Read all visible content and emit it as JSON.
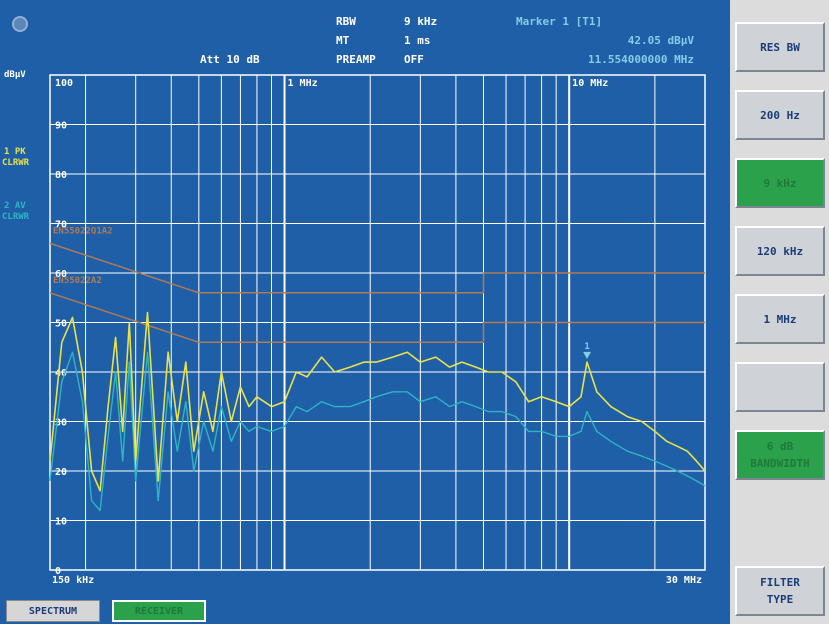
{
  "header": {
    "att": "Att 10 dB",
    "rbw_label": "RBW",
    "rbw_value": "9 kHz",
    "mt_label": "MT",
    "mt_value": "1 ms",
    "preamp_label": "PREAMP",
    "preamp_value": "OFF",
    "marker_title": "Marker 1 [T1]",
    "marker_level": "42.05 dBµV",
    "marker_freq": "11.554000000 MHz"
  },
  "left_labels": {
    "unit": "dBµV",
    "trace1_line1": "1 PK",
    "trace1_line2": "CLRWR",
    "trace2_line1": "2 AV",
    "trace2_line2": "CLRWR"
  },
  "colors": {
    "screen_bg": "#1f5fa8",
    "grid": "#ffffff",
    "trace_peak": "#e8e24a",
    "trace_avg": "#2fb4c2",
    "limit_lines": "#b07a52",
    "softkey_active": "#2aa14a"
  },
  "softkeys": [
    {
      "label": "RES BW",
      "active": false
    },
    {
      "label": "200 Hz",
      "active": false
    },
    {
      "label": "9 kHz",
      "active": true
    },
    {
      "label": "120 kHz",
      "active": false
    },
    {
      "label": "1 MHz",
      "active": false
    },
    {
      "label": "",
      "active": false
    },
    {
      "label": "6 dB\nBANDWIDTH",
      "active": true
    },
    {
      "label": "FILTER\nTYPE",
      "active": false
    }
  ],
  "tabs": {
    "spectrum": "SPECTRUM",
    "receiver": "RECEIVER"
  },
  "chart_data": {
    "type": "line",
    "xscale": "log",
    "xlim": [
      150000,
      30000000
    ],
    "ylim": [
      0,
      100
    ],
    "y_ticks": [
      0,
      10,
      20,
      30,
      40,
      50,
      60,
      70,
      80,
      90,
      100
    ],
    "x_tick_labels": [
      "150 kHz",
      "1 MHz",
      "10 MHz",
      "30 MHz"
    ],
    "grid": true,
    "limit_lines": [
      {
        "name": "EN55022Q1A2",
        "points": [
          [
            150000,
            66
          ],
          [
            500000,
            56
          ],
          [
            5000000,
            56
          ],
          [
            5000000,
            60
          ],
          [
            30000000,
            60
          ]
        ]
      },
      {
        "name": "EN55022A2",
        "points": [
          [
            150000,
            56
          ],
          [
            500000,
            46
          ],
          [
            5000000,
            46
          ],
          [
            5000000,
            50
          ],
          [
            30000000,
            50
          ]
        ]
      }
    ],
    "marker": {
      "label": "1",
      "x": 11554000,
      "y": 42.05
    },
    "series": [
      {
        "name": "1 PK",
        "x": [
          150000,
          165000,
          180000,
          195000,
          210000,
          225000,
          240000,
          255000,
          270000,
          285000,
          300000,
          330000,
          360000,
          390000,
          420000,
          450000,
          480000,
          520000,
          560000,
          600000,
          650000,
          700000,
          750000,
          800000,
          900000,
          1000000,
          1100000,
          1200000,
          1350000,
          1500000,
          1700000,
          1900000,
          2100000,
          2400000,
          2700000,
          3000000,
          3400000,
          3800000,
          4200000,
          4700000,
          5200000,
          5800000,
          6500000,
          7200000,
          8000000,
          9000000,
          10000000,
          11000000,
          11554000,
          12500000,
          14000000,
          16000000,
          18000000,
          20000000,
          22000000,
          24000000,
          26000000,
          28000000,
          30000000
        ],
        "values": [
          22,
          46,
          51,
          40,
          20,
          16,
          33,
          47,
          28,
          50,
          22,
          52,
          18,
          44,
          30,
          42,
          24,
          36,
          28,
          40,
          30,
          37,
          33,
          35,
          33,
          34,
          40,
          39,
          43,
          40,
          41,
          42,
          42,
          43,
          44,
          42,
          43,
          41,
          42,
          41,
          40,
          40,
          38,
          34,
          35,
          34,
          33,
          35,
          42,
          36,
          33,
          31,
          30,
          28,
          26,
          25,
          24,
          22,
          20
        ]
      },
      {
        "name": "2 AV",
        "x": [
          150000,
          165000,
          180000,
          195000,
          210000,
          225000,
          240000,
          255000,
          270000,
          285000,
          300000,
          330000,
          360000,
          390000,
          420000,
          450000,
          480000,
          520000,
          560000,
          600000,
          650000,
          700000,
          750000,
          800000,
          900000,
          1000000,
          1100000,
          1200000,
          1350000,
          1500000,
          1700000,
          1900000,
          2100000,
          2400000,
          2700000,
          3000000,
          3400000,
          3800000,
          4200000,
          4700000,
          5200000,
          5800000,
          6500000,
          7200000,
          8000000,
          9000000,
          10000000,
          11000000,
          11554000,
          12500000,
          14000000,
          16000000,
          18000000,
          20000000,
          22000000,
          24000000,
          26000000,
          28000000,
          30000000
        ],
        "values": [
          18,
          38,
          44,
          34,
          14,
          12,
          27,
          40,
          22,
          42,
          18,
          44,
          14,
          36,
          24,
          34,
          20,
          30,
          24,
          33,
          26,
          30,
          28,
          29,
          28,
          29,
          33,
          32,
          34,
          33,
          33,
          34,
          35,
          36,
          36,
          34,
          35,
          33,
          34,
          33,
          32,
          32,
          31,
          28,
          28,
          27,
          27,
          28,
          32,
          28,
          26,
          24,
          23,
          22,
          21,
          20,
          19,
          18,
          17
        ]
      }
    ]
  }
}
